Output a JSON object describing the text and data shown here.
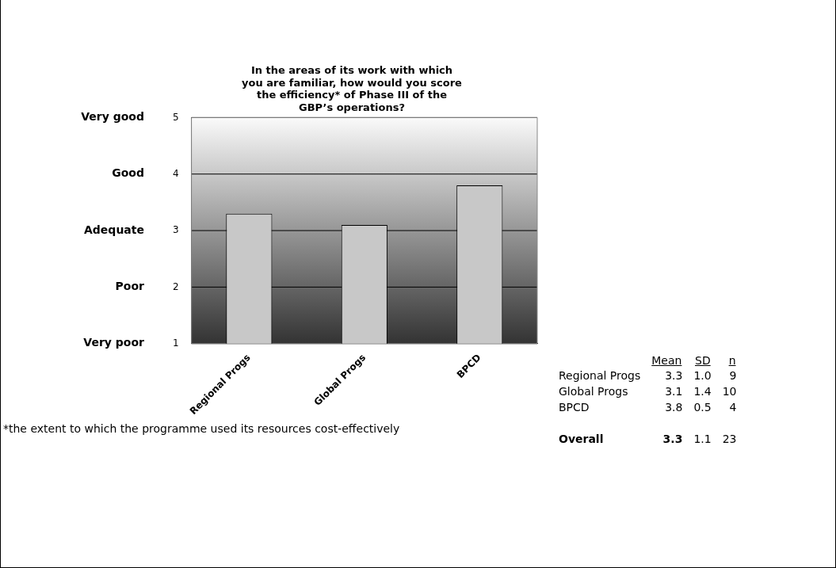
{
  "chart_data": [
    {
      "type": "bar",
      "title": "In the areas of its work with which you are familiar, how would you score the efficiency* of Phase III of the GBP’s operations?",
      "categories": [
        "Regional Progs",
        "Global Progs",
        "BPCD"
      ],
      "values": [
        3.3,
        3.1,
        3.8
      ],
      "color": "#c8c8c8",
      "ylim": [
        1,
        5
      ],
      "yticks": [
        1,
        2,
        3,
        4,
        5
      ],
      "grid": "y",
      "legend": false,
      "annotations": [
        "Very poor",
        "Poor",
        "Adequate",
        "Good",
        "Very good",
        "*the extent to which the programme used its resources cost-effectively"
      ]
    },
    {
      "type": "other",
      "data_labels": true,
      "categories": [
        "Regional Progs",
        "Global Progs",
        "BPCD",
        "Overall"
      ],
      "series": [
        {
          "name": "Mean",
          "values": [
            3.3,
            3.1,
            3.8,
            3.3
          ]
        },
        {
          "name": "SD",
          "values": [
            1.0,
            1.4,
            0.5,
            1.1
          ],
          "value_labels": [
            "1.0",
            "1.4",
            "0.5",
            "1.1"
          ]
        },
        {
          "name": "n",
          "values": [
            9,
            10,
            4,
            23
          ]
        }
      ]
    }
  ]
}
